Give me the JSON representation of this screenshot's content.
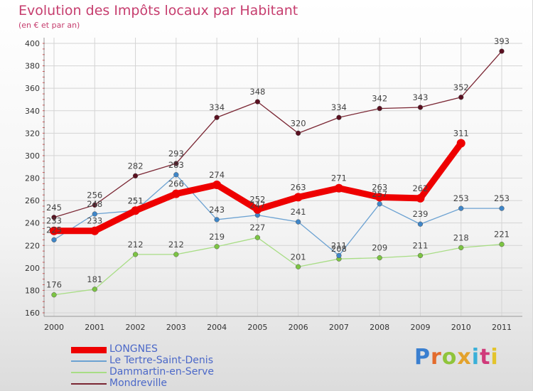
{
  "header": {
    "title": "Evolution des Impôts locaux par Habitant",
    "subtitle": "(en € et par an)"
  },
  "logo": {
    "text": "Proxiti",
    "letter_colors": [
      "#3a7fd0",
      "#e36b2c",
      "#8fc43b",
      "#e3a22c",
      "#3ab0d8",
      "#d03a7a",
      "#e3c42c"
    ]
  },
  "chart_data": {
    "type": "line",
    "title": "Evolution des Impôts locaux par Habitant",
    "subtitle": "(en € et par an)",
    "xlabel": "",
    "ylabel": "",
    "x": [
      2000,
      2001,
      2002,
      2003,
      2004,
      2005,
      2006,
      2007,
      2008,
      2009,
      2010,
      2011
    ],
    "x_tick_labels": [
      "2000",
      "2001",
      "2002",
      "2003",
      "2004",
      "2005",
      "2006",
      "2007",
      "2008",
      "2009",
      "2010",
      "2011"
    ],
    "ylim": [
      160,
      400
    ],
    "y_ticks": [
      160,
      180,
      200,
      220,
      240,
      260,
      280,
      300,
      320,
      340,
      360,
      380,
      400
    ],
    "grid": true,
    "legend_position": "bottom-left",
    "series": [
      {
        "name": "Mondreville",
        "color": "#7a2633",
        "marker": "#5a1020",
        "emphasis": false,
        "values": [
          245,
          256,
          282,
          293,
          334,
          348,
          320,
          334,
          342,
          343,
          352,
          393
        ]
      },
      {
        "name": "Dammartin-en-Serve",
        "color": "#a8dd85",
        "marker": "#7cc443",
        "emphasis": false,
        "values": [
          176,
          181,
          212,
          212,
          219,
          227,
          201,
          208,
          209,
          211,
          218,
          221
        ]
      },
      {
        "name": "Le Tertre-Saint-Denis",
        "color": "#6ca2d2",
        "marker": "#3f86c8",
        "emphasis": false,
        "values": [
          225,
          248,
          251,
          283,
          243,
          247,
          241,
          211,
          257,
          239,
          253,
          253
        ]
      },
      {
        "name": "LONGNES",
        "color": "#ee0000",
        "marker": "#ee0000",
        "emphasis": true,
        "values": [
          233,
          233,
          251,
          266,
          274,
          252,
          263,
          271,
          263,
          262,
          311,
          null
        ]
      }
    ],
    "legend_order": [
      "LONGNES",
      "Le Tertre-Saint-Denis",
      "Dammartin-en-Serve",
      "Mondreville"
    ]
  }
}
